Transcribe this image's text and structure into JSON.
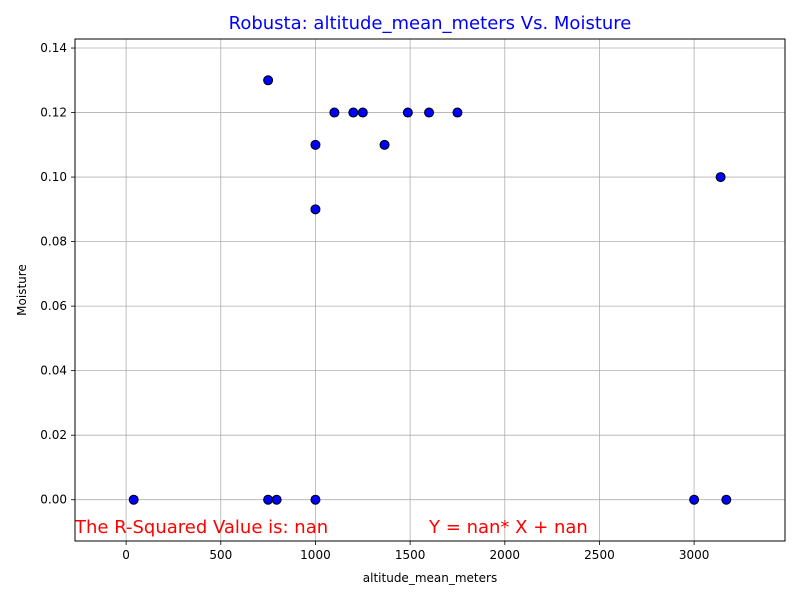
{
  "colors": {
    "title": "#0000ff",
    "annotation": "#ff0000",
    "point_fill": "#0000ff",
    "point_edge": "#000000",
    "grid": "#b0b0b0",
    "axes": "#000000"
  },
  "chart_data": {
    "type": "scatter",
    "title": "Robusta: altitude_mean_meters Vs. Moisture",
    "xlabel": "altitude_mean_meters",
    "ylabel": "Moisture",
    "xlim": [
      -270,
      3480
    ],
    "ylim": [
      -0.0128,
      0.1428
    ],
    "grid": true,
    "x_ticks": [
      0,
      500,
      1000,
      1500,
      2000,
      2500,
      3000
    ],
    "y_ticks": [
      0.0,
      0.02,
      0.04,
      0.06,
      0.08,
      0.1,
      0.12,
      0.14
    ],
    "y_tick_labels": [
      "0.00",
      "0.02",
      "0.04",
      "0.06",
      "0.08",
      "0.10",
      "0.12",
      "0.14"
    ],
    "series": [
      {
        "points": [
          {
            "x": 40,
            "y": 0.0
          },
          {
            "x": 750,
            "y": 0.13
          },
          {
            "x": 750,
            "y": 0.0
          },
          {
            "x": 795,
            "y": 0.0
          },
          {
            "x": 1000,
            "y": 0.11
          },
          {
            "x": 1000,
            "y": 0.09
          },
          {
            "x": 1000,
            "y": 0.0
          },
          {
            "x": 1100,
            "y": 0.12
          },
          {
            "x": 1200,
            "y": 0.12
          },
          {
            "x": 1250,
            "y": 0.12
          },
          {
            "x": 1365,
            "y": 0.11
          },
          {
            "x": 1488,
            "y": 0.12
          },
          {
            "x": 1600,
            "y": 0.12
          },
          {
            "x": 1750,
            "y": 0.12
          },
          {
            "x": 3000,
            "y": 0.0
          },
          {
            "x": 3140,
            "y": 0.1
          },
          {
            "x": 3170,
            "y": 0.0
          }
        ]
      }
    ],
    "annotations": [
      {
        "text": "The R-Squared Value is: nan",
        "x": -270,
        "y": -0.0085
      },
      {
        "text": "Y = nan* X + nan",
        "x": 1600,
        "y": -0.0085
      }
    ]
  }
}
